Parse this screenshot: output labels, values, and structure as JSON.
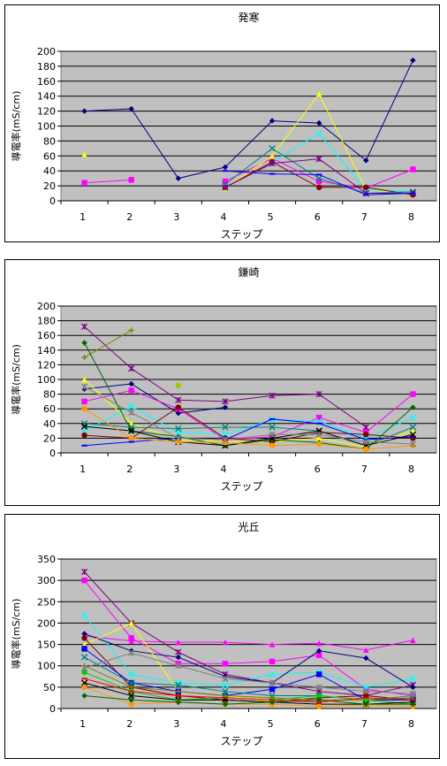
{
  "chart_data": [
    {
      "type": "line",
      "title": "発寒",
      "xlabel": "ステップ",
      "ylabel": "導電率(mS/cm)",
      "categories": [
        "1",
        "2",
        "3",
        "4",
        "5",
        "6",
        "7",
        "8"
      ],
      "ylim": [
        0,
        200
      ],
      "yticks": [
        0,
        20,
        40,
        60,
        80,
        100,
        120,
        140,
        160,
        180,
        200
      ],
      "grid": true,
      "series": [
        {
          "color": "#000080",
          "marker": "diamond",
          "values": [
            120,
            123,
            30,
            45,
            107,
            104,
            54,
            188
          ]
        },
        {
          "color": "#ff00ff",
          "marker": "square",
          "values": [
            24,
            28,
            null,
            26,
            57,
            26,
            17,
            42
          ]
        },
        {
          "color": "#ffff00",
          "marker": "triangle",
          "values": [
            62,
            null,
            null,
            17,
            60,
            143,
            15,
            8
          ]
        },
        {
          "color": "#00ffff",
          "marker": "x",
          "values": [
            null,
            null,
            null,
            18,
            52,
            90,
            15,
            12
          ]
        },
        {
          "color": "#800000",
          "marker": "circle",
          "values": [
            null,
            null,
            null,
            18,
            52,
            18,
            18,
            8
          ]
        },
        {
          "color": "#008080",
          "marker": "x",
          "values": [
            null,
            null,
            null,
            22,
            70,
            30,
            10,
            12
          ]
        },
        {
          "color": "#800080",
          "marker": "star",
          "values": [
            null,
            null,
            null,
            18,
            50,
            56,
            10,
            10
          ]
        },
        {
          "color": "#0000ff",
          "marker": "dash",
          "values": [
            null,
            null,
            null,
            40,
            36,
            35,
            8,
            10
          ]
        }
      ]
    },
    {
      "type": "line",
      "title": "鎌崎",
      "xlabel": "ステップ",
      "ylabel": "導電率(mS/cm)",
      "categories": [
        "1",
        "2",
        "3",
        "4",
        "5",
        "6",
        "7",
        "8"
      ],
      "ylim": [
        0,
        200
      ],
      "yticks": [
        0,
        20,
        40,
        60,
        80,
        100,
        120,
        140,
        160,
        180,
        200
      ],
      "grid": true,
      "series": [
        {
          "color": "#000080",
          "marker": "diamond",
          "values": [
            87,
            94,
            54,
            62,
            null,
            null,
            null,
            null
          ]
        },
        {
          "color": "#ff00ff",
          "marker": "square",
          "values": [
            70,
            85,
            60,
            18,
            22,
            48,
            28,
            80
          ]
        },
        {
          "color": "#ffff00",
          "marker": "triangle",
          "values": [
            100,
            40,
            18,
            15,
            15,
            20,
            8,
            30
          ]
        },
        {
          "color": "#00ffff",
          "marker": "x",
          "values": [
            30,
            63,
            28,
            25,
            45,
            43,
            20,
            48
          ]
        },
        {
          "color": "#800080",
          "marker": "star",
          "values": [
            172,
            115,
            72,
            70,
            78,
            80,
            35,
            null
          ]
        },
        {
          "color": "#800000",
          "marker": "circle",
          "values": [
            24,
            20,
            62,
            20,
            15,
            28,
            25,
            20
          ]
        },
        {
          "color": "#008080",
          "marker": "x",
          "values": [
            40,
            35,
            33,
            35,
            35,
            30,
            10,
            35
          ]
        },
        {
          "color": "#0000ff",
          "marker": "dash",
          "values": [
            10,
            15,
            20,
            18,
            46,
            40,
            18,
            22
          ]
        },
        {
          "color": "#808000",
          "marker": "plus",
          "values": [
            130,
            167,
            null,
            null,
            null,
            null,
            null,
            null
          ]
        },
        {
          "color": "#99cc00",
          "marker": "circle",
          "values": [
            60,
            null,
            92,
            null,
            null,
            null,
            null,
            null
          ]
        },
        {
          "color": "#006600",
          "marker": "diamond",
          "values": [
            150,
            30,
            22,
            10,
            18,
            14,
            5,
            62
          ]
        },
        {
          "color": "#000000",
          "marker": "x",
          "values": [
            36,
            30,
            15,
            10,
            20,
            30,
            10,
            25
          ]
        },
        {
          "color": "#ff9900",
          "marker": "circle",
          "values": [
            60,
            20,
            15,
            14,
            10,
            12,
            5,
            10
          ]
        },
        {
          "color": "#808080",
          "marker": "star",
          "values": [
            90,
            55,
            20,
            18,
            25,
            25,
            15,
            12
          ]
        }
      ]
    },
    {
      "type": "line",
      "title": "光丘",
      "xlabel": "ステップ",
      "ylabel": "導電率(mS/cm)",
      "categories": [
        "1",
        "2",
        "3",
        "4",
        "5",
        "6",
        "7",
        "8"
      ],
      "ylim": [
        0,
        350
      ],
      "yticks": [
        0,
        50,
        100,
        150,
        200,
        250,
        300,
        350
      ],
      "grid": true,
      "series": [
        {
          "color": "#ff00ff",
          "marker": "triangle",
          "values": [
            170,
            158,
            155,
            155,
            150,
            153,
            137,
            160
          ]
        },
        {
          "color": "#ff00ff",
          "marker": "square",
          "values": [
            300,
            165,
            105,
            105,
            110,
            125,
            45,
            30
          ]
        },
        {
          "color": "#800080",
          "marker": "star",
          "values": [
            320,
            200,
            132,
            80,
            60,
            40,
            30,
            55
          ]
        },
        {
          "color": "#00ffff",
          "marker": "x",
          "values": [
            218,
            80,
            60,
            55,
            80,
            85,
            50,
            70
          ]
        },
        {
          "color": "#000080",
          "marker": "diamond",
          "values": [
            175,
            135,
            120,
            75,
            60,
            135,
            118,
            50
          ]
        },
        {
          "color": "#ffff00",
          "marker": "triangle",
          "values": [
            150,
            200,
            40,
            30,
            15,
            20,
            10,
            15
          ]
        },
        {
          "color": "#800000",
          "marker": "circle",
          "values": [
            165,
            50,
            30,
            20,
            15,
            25,
            30,
            20
          ]
        },
        {
          "color": "#0000ff",
          "marker": "square",
          "values": [
            140,
            60,
            40,
            30,
            45,
            80,
            20,
            20
          ]
        },
        {
          "color": "#008080",
          "marker": "x",
          "values": [
            120,
            60,
            55,
            40,
            30,
            30,
            20,
            25
          ]
        },
        {
          "color": "#808000",
          "marker": "plus",
          "values": [
            100,
            50,
            40,
            30,
            25,
            20,
            20,
            30
          ]
        },
        {
          "color": "#00cc00",
          "marker": "circle",
          "values": [
            85,
            40,
            20,
            25,
            20,
            30,
            20,
            10
          ]
        },
        {
          "color": "#000000",
          "marker": "x",
          "values": [
            60,
            30,
            20,
            20,
            15,
            10,
            10,
            15
          ]
        },
        {
          "color": "#ff9900",
          "marker": "circle",
          "values": [
            50,
            10,
            15,
            10,
            10,
            5,
            8,
            5
          ]
        },
        {
          "color": "#808080",
          "marker": "star",
          "values": [
            95,
            130,
            100,
            70,
            60,
            50,
            40,
            35
          ]
        },
        {
          "color": "#006600",
          "marker": "diamond",
          "values": [
            30,
            20,
            15,
            10,
            15,
            20,
            10,
            10
          ]
        },
        {
          "color": "#ff0000",
          "marker": "dash",
          "values": [
            70,
            40,
            30,
            25,
            20,
            15,
            25,
            20
          ]
        }
      ]
    }
  ]
}
